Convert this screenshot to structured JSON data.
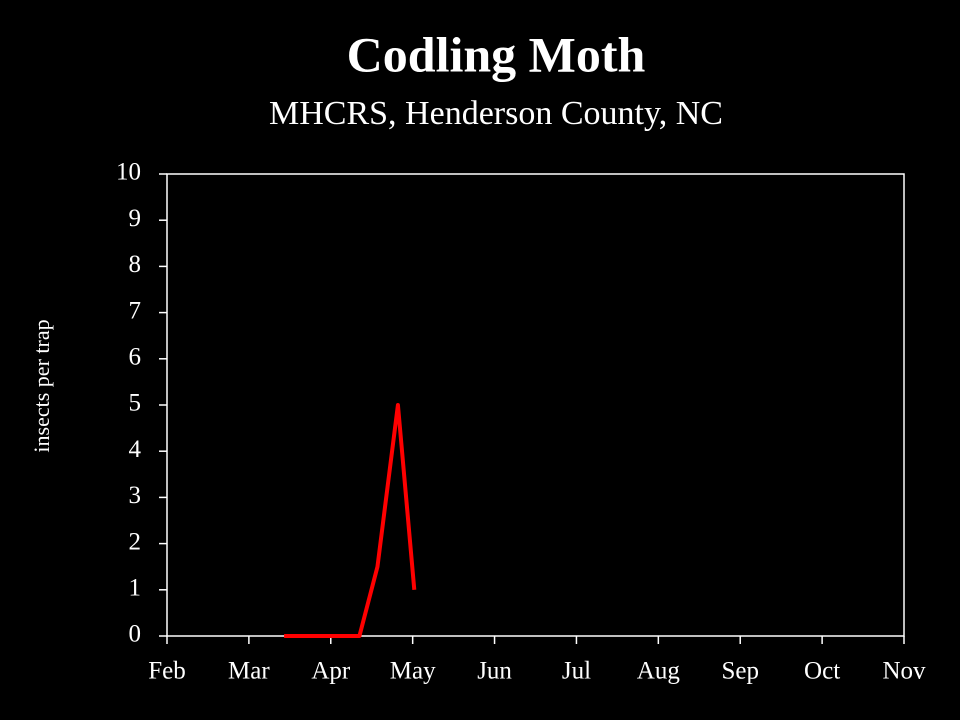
{
  "chart_data": {
    "type": "line",
    "title": "Codling Moth",
    "subtitle": "MHCRS, Henderson County, NC",
    "y_label": "insects per trap",
    "x": [
      3.43,
      3.66,
      3.89,
      4.12,
      4.35,
      4.57,
      4.82,
      5.02
    ],
    "series": [
      {
        "color": "#ff0000",
        "values": [
          0,
          0,
          0,
          0,
          0,
          1.5,
          5,
          1
        ]
      }
    ],
    "xlim": [
      2,
      11
    ],
    "xticks": [
      {
        "value": 2,
        "label": "Feb"
      },
      {
        "value": 3,
        "label": "Mar"
      },
      {
        "value": 4,
        "label": "Apr"
      },
      {
        "value": 5,
        "label": "May"
      },
      {
        "value": 6,
        "label": "Jun"
      },
      {
        "value": 7,
        "label": "Jul"
      },
      {
        "value": 8,
        "label": "Aug"
      },
      {
        "value": 9,
        "label": "Sep"
      },
      {
        "value": 10,
        "label": "Oct"
      },
      {
        "value": 11,
        "label": "Nov"
      }
    ],
    "ylim": [
      0,
      10
    ],
    "yticks": [
      0,
      1,
      2,
      3,
      4,
      5,
      6,
      7,
      8,
      9,
      10
    ],
    "grid": false
  }
}
